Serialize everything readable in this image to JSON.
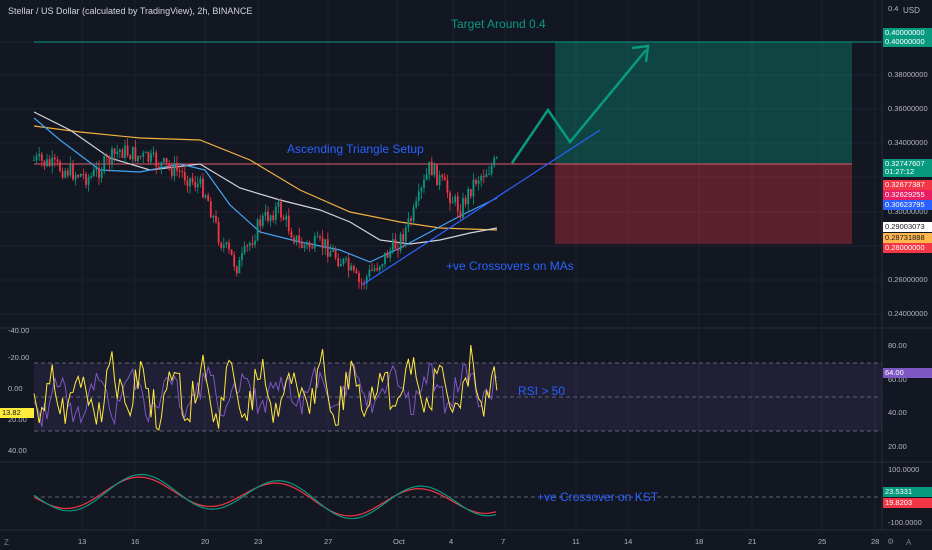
{
  "header": {
    "title": "Stellar / US Dollar (calculated by TradingView), 2h, BINANCE",
    "currency": "USD"
  },
  "annotations": {
    "target": "Target Around 0.4",
    "triangle": "Ascending Triangle Setup",
    "ma_cross": "+ve Crossovers on MAs",
    "rsi": "RSI > 50",
    "kst": "+ve Crossover on KST"
  },
  "price_axis": {
    "ticks": [
      "0.40000000",
      "0.38000000",
      "0.36000000",
      "0.34000000",
      "0.32000000",
      "0.30000000",
      "0.28000000",
      "0.26000000",
      "0.24000000"
    ],
    "top_tick": "0.4",
    "tags": [
      {
        "id": "target1",
        "text": "0.40000000",
        "color": "#089981"
      },
      {
        "id": "target2",
        "text": "0.40000000",
        "color": "#089981"
      },
      {
        "id": "last",
        "text": "0.32747607",
        "color": "#089981"
      },
      {
        "id": "timer",
        "text": "01:27:12",
        "color": "#089981"
      },
      {
        "id": "t1",
        "text": "0.32677387",
        "color": "#f23645"
      },
      {
        "id": "t2",
        "text": "0.32629255",
        "color": "#e91e63"
      },
      {
        "id": "t3",
        "text": "0.30623795",
        "color": "#2962ff"
      },
      {
        "id": "t4",
        "text": "0.29003073",
        "color": "#ffffff"
      },
      {
        "id": "t5",
        "text": "0.28731888",
        "color": "#ffb74d"
      },
      {
        "id": "stop",
        "text": "0.28000000",
        "color": "#f23645"
      }
    ]
  },
  "rsi_pane": {
    "left_ticks": [
      "-40.00",
      "-20.00",
      "0.00",
      "20.00",
      "40.00"
    ],
    "right_ticks": [
      "80.00",
      "60.00",
      "40.00",
      "20.00"
    ],
    "left_tag": "13.82",
    "right_tag": "64.00"
  },
  "kst_pane": {
    "right_ticks": [
      "100.0000",
      "-100.0000"
    ],
    "tags": [
      "23.5331",
      "19.8203"
    ]
  },
  "time_axis": {
    "labels": [
      "13",
      "16",
      "20",
      "23",
      "27",
      "Oct",
      "4",
      "7",
      "11",
      "14",
      "18",
      "21",
      "25",
      "28"
    ]
  },
  "colors": {
    "background": "#131722",
    "up": "#089981",
    "down": "#f23645",
    "annotation_blue": "#2962ff",
    "ma_orange": "#f0b140",
    "ma_white": "#d1d4dc",
    "ma_blue": "#42a5f5",
    "rsi_purple": "#7e57c2",
    "yellow": "#ffeb3b"
  },
  "bottom_icons": [
    "Z-icon",
    "gear-icon",
    "A-icon"
  ]
}
